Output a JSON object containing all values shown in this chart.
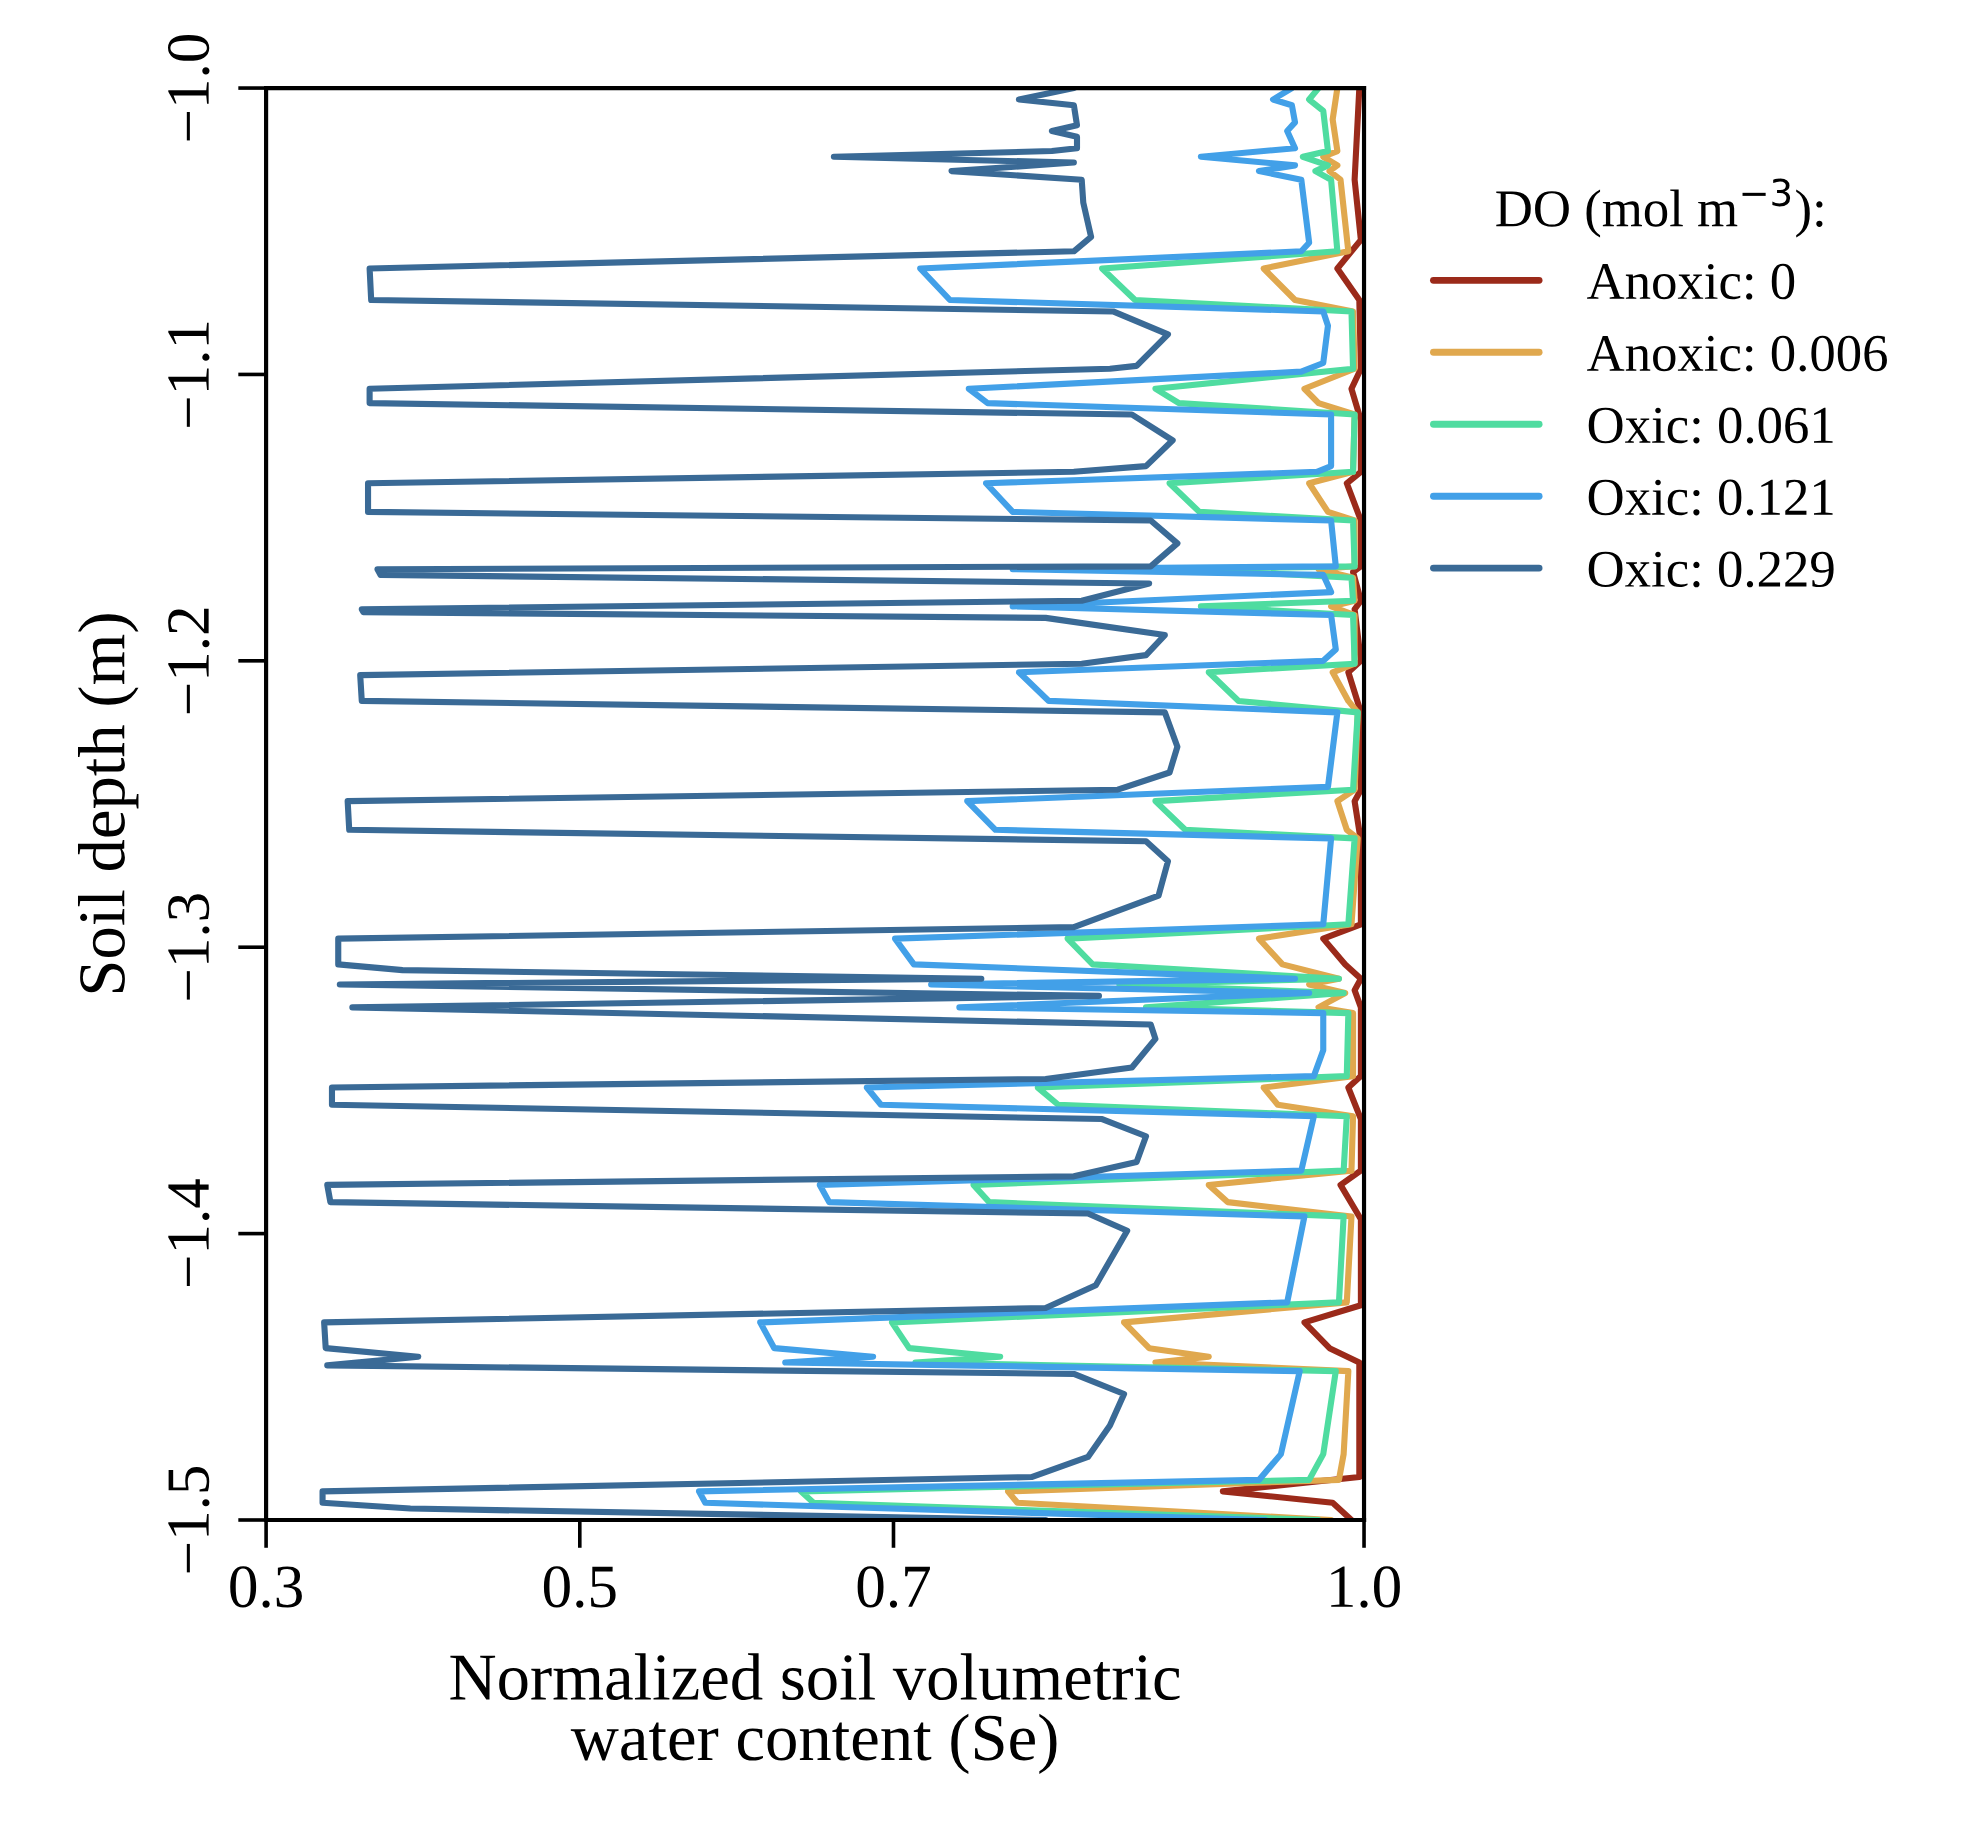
{
  "chart_data": {
    "type": "line",
    "xlabel": "Normalized soil volumetric\nwater content (Se)",
    "ylabel": "Soil depth (m)",
    "legend_title": "DO (mol m$^{−3}$):",
    "legend": "top right",
    "grid": false,
    "xlim": [
      0.3,
      1.0
    ],
    "ylim": [
      -1.5,
      -1.0
    ],
    "xticks": [
      0.3,
      0.5,
      0.7,
      {
        "value": 1.0,
        "label": "1.0"
      }
    ],
    "yticks": [
      {
        "value": -1.0,
        "label": "−1.0"
      },
      {
        "value": -1.1,
        "label": "−1.1"
      },
      {
        "value": -1.2,
        "label": "−1.2"
      },
      {
        "value": -1.3,
        "label": "−1.3"
      },
      {
        "value": -1.4,
        "label": "−1.4"
      },
      {
        "value": -1.5,
        "label": "−1.5"
      }
    ],
    "series": [
      {
        "name": "Anoxic: 0",
        "color": "#9b2a1a",
        "x": [
          0.997,
          0.994,
          0.998,
          0.983,
          0.997,
          0.998,
          0.992,
          0.998,
          0.998,
          0.989,
          0.998,
          0.998,
          0.993,
          0.998,
          0.994,
          0.998,
          0.99,
          0.998,
          0.998,
          0.994,
          0.998,
          0.998,
          0.974,
          0.988,
          0.998,
          0.994,
          0.998,
          0.998,
          0.99,
          0.998,
          0.998,
          0.985,
          0.998,
          0.998,
          0.962,
          0.978,
          0.997,
          0.997,
          0.91,
          0.98,
          0.992
        ],
        "values": [
          -1.0,
          -1.032,
          -1.053,
          -1.063,
          -1.074,
          -1.098,
          -1.105,
          -1.116,
          -1.134,
          -1.138,
          -1.151,
          -1.167,
          -1.169,
          -1.179,
          -1.182,
          -1.2,
          -1.204,
          -1.218,
          -1.245,
          -1.249,
          -1.263,
          -1.292,
          -1.297,
          -1.306,
          -1.311,
          -1.315,
          -1.321,
          -1.345,
          -1.349,
          -1.36,
          -1.378,
          -1.383,
          -1.395,
          -1.425,
          -1.431,
          -1.44,
          -1.445,
          -1.485,
          -1.49,
          -1.494,
          -1.5
        ]
      },
      {
        "name": "Anoxic: 0.006",
        "color": "#e0a84e",
        "x": [
          0.983,
          0.98,
          0.983,
          0.974,
          0.983,
          0.978,
          0.985,
          0.99,
          0.936,
          0.956,
          0.993,
          0.994,
          0.962,
          0.971,
          0.994,
          0.993,
          0.965,
          0.977,
          0.994,
          0.994,
          0.971,
          0.993,
          0.994,
          0.979,
          0.994,
          0.994,
          0.98,
          0.99,
          0.996,
          0.994,
          0.983,
          0.989,
          0.996,
          0.992,
          0.933,
          0.948,
          0.984,
          0.965,
          0.988,
          0.971,
          0.993,
          0.993,
          0.936,
          0.945,
          0.993,
          0.992,
          0.901,
          0.913,
          0.992,
          0.989,
          0.847,
          0.863,
          0.901,
          0.867,
          0.99,
          0.987,
          0.984,
          0.773,
          0.779,
          0.979
        ],
        "values": [
          -1.0,
          -1.011,
          -1.022,
          -1.024,
          -1.027,
          -1.029,
          -1.032,
          -1.057,
          -1.063,
          -1.074,
          -1.078,
          -1.098,
          -1.105,
          -1.11,
          -1.114,
          -1.134,
          -1.138,
          -1.148,
          -1.151,
          -1.167,
          -1.168,
          -1.171,
          -1.179,
          -1.181,
          -1.184,
          -1.201,
          -1.204,
          -1.214,
          -1.218,
          -1.245,
          -1.249,
          -1.259,
          -1.262,
          -1.292,
          -1.297,
          -1.306,
          -1.311,
          -1.313,
          -1.316,
          -1.321,
          -1.323,
          -1.345,
          -1.349,
          -1.355,
          -1.359,
          -1.378,
          -1.383,
          -1.389,
          -1.394,
          -1.424,
          -1.431,
          -1.44,
          -1.443,
          -1.445,
          -1.448,
          -1.477,
          -1.486,
          -1.49,
          -1.494,
          -1.5
        ]
      },
      {
        "name": "Oxic: 0.061",
        "color": "#4fdca0",
        "x": [
          0.971,
          0.965,
          0.974,
          0.977,
          0.961,
          0.977,
          0.969,
          0.979,
          0.983,
          0.833,
          0.854,
          0.992,
          0.993,
          0.867,
          0.882,
          0.994,
          0.993,
          0.876,
          0.895,
          0.993,
          0.994,
          0.887,
          0.992,
          0.993,
          0.896,
          0.993,
          0.994,
          0.901,
          0.92,
          0.996,
          0.993,
          0.867,
          0.886,
          0.994,
          0.99,
          0.811,
          0.827,
          0.984,
          0.844,
          0.987,
          0.861,
          0.99,
          0.989,
          0.792,
          0.805,
          0.989,
          0.987,
          0.751,
          0.761,
          0.987,
          0.984,
          0.699,
          0.71,
          0.768,
          0.714,
          0.982,
          0.974,
          0.965,
          0.641,
          0.649,
          0.971
        ],
        "values": [
          -1.0,
          -1.004,
          -1.008,
          -1.022,
          -1.024,
          -1.027,
          -1.029,
          -1.032,
          -1.057,
          -1.063,
          -1.074,
          -1.078,
          -1.098,
          -1.105,
          -1.11,
          -1.114,
          -1.134,
          -1.138,
          -1.148,
          -1.151,
          -1.167,
          -1.168,
          -1.171,
          -1.179,
          -1.181,
          -1.184,
          -1.201,
          -1.204,
          -1.214,
          -1.218,
          -1.245,
          -1.249,
          -1.259,
          -1.262,
          -1.292,
          -1.297,
          -1.306,
          -1.311,
          -1.313,
          -1.316,
          -1.321,
          -1.323,
          -1.345,
          -1.349,
          -1.355,
          -1.359,
          -1.378,
          -1.383,
          -1.389,
          -1.394,
          -1.424,
          -1.431,
          -1.44,
          -1.443,
          -1.445,
          -1.448,
          -1.477,
          -1.486,
          -1.49,
          -1.494,
          -1.5
        ]
      },
      {
        "name": "Oxic: 0.121",
        "color": "#42a0e8",
        "x": [
          0.954,
          0.942,
          0.954,
          0.956,
          0.951,
          0.956,
          0.896,
          0.956,
          0.933,
          0.96,
          0.965,
          0.96,
          0.717,
          0.736,
          0.974,
          0.977,
          0.974,
          0.96,
          0.748,
          0.76,
          0.979,
          0.979,
          0.97,
          0.759,
          0.776,
          0.979,
          0.982,
          0.776,
          0.974,
          0.979,
          0.776,
          0.979,
          0.982,
          0.974,
          0.78,
          0.799,
          0.983,
          0.977,
          0.747,
          0.765,
          0.979,
          0.974,
          0.701,
          0.713,
          0.956,
          0.724,
          0.965,
          0.742,
          0.974,
          0.974,
          0.968,
          0.683,
          0.692,
          0.968,
          0.96,
          0.653,
          0.659,
          0.962,
          0.951,
          0.615,
          0.624,
          0.687,
          0.631,
          0.959,
          0.947,
          0.933,
          0.576,
          0.58,
          0.937
        ],
        "values": [
          -1.0,
          -1.004,
          -1.006,
          -1.012,
          -1.015,
          -1.021,
          -1.024,
          -1.027,
          -1.029,
          -1.032,
          -1.054,
          -1.057,
          -1.063,
          -1.074,
          -1.078,
          -1.083,
          -1.096,
          -1.099,
          -1.105,
          -1.11,
          -1.114,
          -1.132,
          -1.134,
          -1.138,
          -1.148,
          -1.151,
          -1.167,
          -1.168,
          -1.17,
          -1.176,
          -1.181,
          -1.184,
          -1.196,
          -1.2,
          -1.204,
          -1.214,
          -1.218,
          -1.244,
          -1.249,
          -1.259,
          -1.262,
          -1.292,
          -1.297,
          -1.306,
          -1.311,
          -1.313,
          -1.316,
          -1.321,
          -1.323,
          -1.336,
          -1.345,
          -1.349,
          -1.355,
          -1.359,
          -1.378,
          -1.383,
          -1.389,
          -1.394,
          -1.424,
          -1.431,
          -1.44,
          -1.443,
          -1.445,
          -1.448,
          -1.477,
          -1.486,
          -1.49,
          -1.494,
          -1.5
        ]
      },
      {
        "name": "Oxic: 0.229",
        "color": "#3a6a96",
        "x": [
          0.815,
          0.78,
          0.815,
          0.817,
          0.801,
          0.817,
          0.817,
          0.801,
          0.662,
          0.815,
          0.737,
          0.82,
          0.821,
          0.826,
          0.815,
          0.366,
          0.367,
          0.84,
          0.875,
          0.855,
          0.838,
          0.366,
          0.366,
          0.852,
          0.878,
          0.861,
          0.815,
          0.365,
          0.365,
          0.864,
          0.881,
          0.864,
          0.371,
          0.373,
          0.863,
          0.82,
          0.361,
          0.362,
          0.797,
          0.873,
          0.861,
          0.82,
          0.36,
          0.361,
          0.873,
          0.881,
          0.876,
          0.843,
          0.352,
          0.353,
          0.861,
          0.875,
          0.869,
          0.815,
          0.346,
          0.346,
          0.387,
          0.756,
          0.347,
          0.831,
          0.355,
          0.864,
          0.867,
          0.852,
          0.797,
          0.342,
          0.342,
          0.833,
          0.861,
          0.855,
          0.815,
          0.339,
          0.341,
          0.824,
          0.849,
          0.829,
          0.797,
          0.337,
          0.338,
          0.397,
          0.339,
          0.815,
          0.847,
          0.838,
          0.824,
          0.788,
          0.336,
          0.336,
          0.392,
          0.797
        ],
        "values": [
          -1.0,
          -1.004,
          -1.006,
          -1.013,
          -1.015,
          -1.017,
          -1.021,
          -1.022,
          -1.024,
          -1.026,
          -1.029,
          -1.032,
          -1.04,
          -1.052,
          -1.057,
          -1.063,
          -1.074,
          -1.078,
          -1.086,
          -1.097,
          -1.098,
          -1.105,
          -1.11,
          -1.114,
          -1.123,
          -1.132,
          -1.134,
          -1.138,
          -1.148,
          -1.151,
          -1.159,
          -1.167,
          -1.168,
          -1.17,
          -1.173,
          -1.179,
          -1.182,
          -1.183,
          -1.185,
          -1.191,
          -1.198,
          -1.201,
          -1.205,
          -1.214,
          -1.218,
          -1.23,
          -1.239,
          -1.245,
          -1.249,
          -1.259,
          -1.263,
          -1.27,
          -1.282,
          -1.293,
          -1.297,
          -1.306,
          -1.308,
          -1.311,
          -1.313,
          -1.317,
          -1.321,
          -1.327,
          -1.332,
          -1.342,
          -1.346,
          -1.349,
          -1.355,
          -1.36,
          -1.366,
          -1.375,
          -1.38,
          -1.383,
          -1.389,
          -1.393,
          -1.399,
          -1.418,
          -1.426,
          -1.431,
          -1.44,
          -1.443,
          -1.446,
          -1.449,
          -1.456,
          -1.467,
          -1.478,
          -1.485,
          -1.49,
          -1.494,
          -1.496,
          -1.5
        ]
      }
    ]
  }
}
